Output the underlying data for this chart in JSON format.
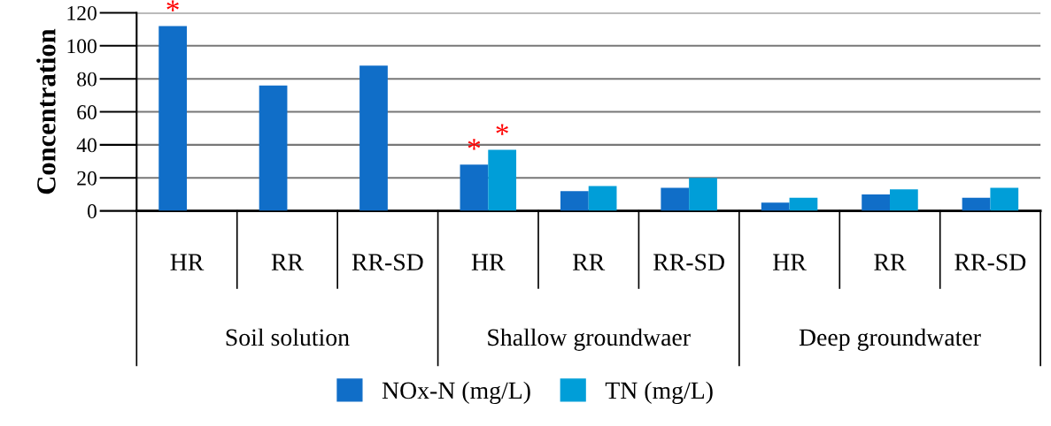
{
  "chart_data": {
    "type": "bar",
    "ylabel": "Concentration",
    "categories": [
      "HR",
      "RR",
      "RR-SD",
      "HR",
      "RR",
      "RR-SD",
      "HR",
      "RR",
      "RR-SD"
    ],
    "series": [
      {
        "name": "NOx-N (mg/L)",
        "color": "#106ec8",
        "values": [
          112,
          76,
          88,
          28,
          12,
          14,
          5,
          10,
          8
        ],
        "value_labels": [
          "*",
          null,
          null,
          "*",
          null,
          null,
          null,
          null,
          null
        ]
      },
      {
        "name": "TN (mg/L)",
        "color": "#009ed8",
        "values": [
          null,
          null,
          null,
          37,
          15,
          20,
          8,
          13,
          14
        ],
        "value_labels": [
          null,
          null,
          null,
          "*",
          null,
          null,
          null,
          null,
          null
        ]
      }
    ],
    "annotations": [
      "Soil solution",
      "Shallow groundwaer",
      "Deep groundwater"
    ],
    "ylim": [
      0,
      120
    ],
    "yticks": [
      0,
      20,
      40,
      60,
      80,
      100,
      120
    ],
    "grid": "y",
    "legend": "bottom"
  }
}
